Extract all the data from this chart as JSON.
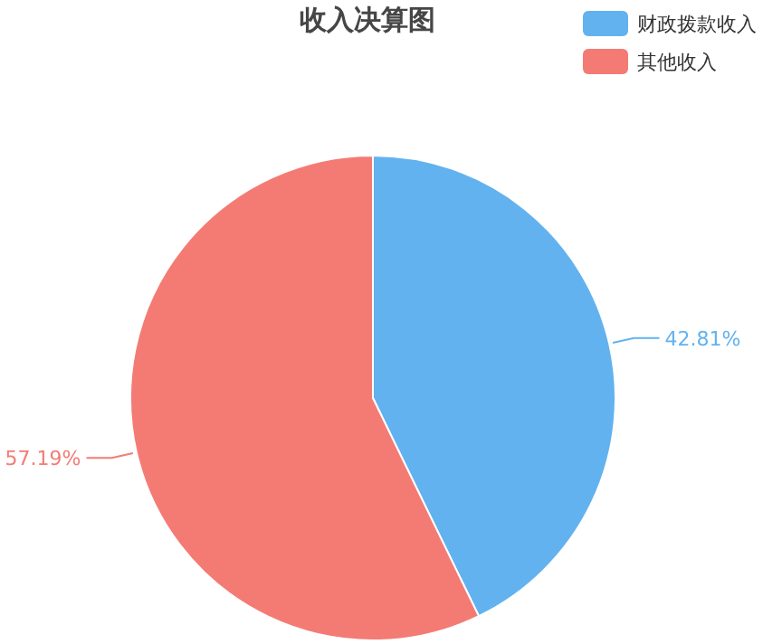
{
  "chart_data": {
    "type": "pie",
    "title": "收入决算图",
    "categories": [
      "财政拨款收入",
      "其他收入"
    ],
    "values": [
      42.81,
      57.19
    ],
    "colors": [
      "#62b2ef",
      "#f47b74"
    ],
    "value_labels": [
      "42.81%",
      "57.19%"
    ],
    "legend": "top right"
  }
}
